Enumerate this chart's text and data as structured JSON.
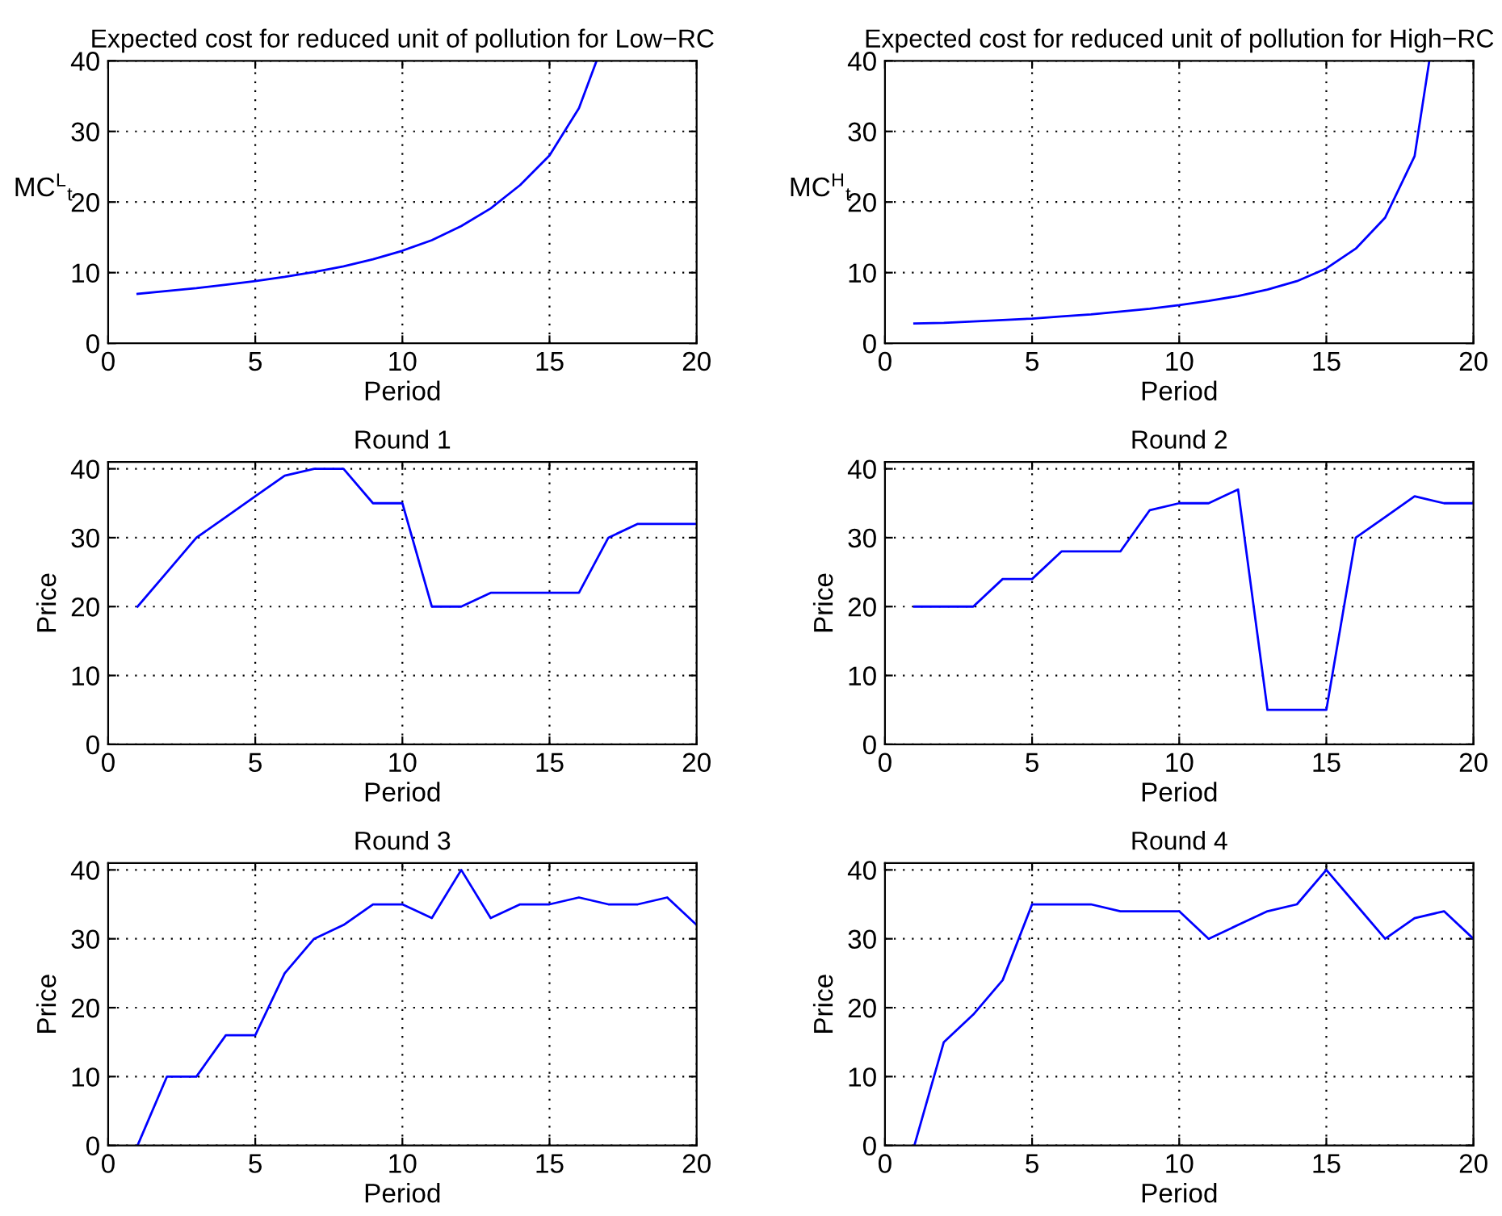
{
  "chart_data": [
    {
      "type": "line",
      "title": "Expected cost for reduced unit of pollution for Low−RC",
      "xlabel": "Period",
      "ylabel": "MC$^{L}$$_{t}$",
      "grid": true,
      "line_style": "solid",
      "xlim": [
        0,
        20
      ],
      "xticks": [
        0,
        5,
        10,
        15,
        20
      ],
      "ylim": [
        0,
        40
      ],
      "yticks": [
        0,
        10,
        20,
        30,
        40
      ],
      "series": [
        {
          "color": "#0000ff",
          "x": [
            1,
            2,
            3,
            4,
            5,
            6,
            7,
            8,
            9,
            10,
            11,
            12,
            13,
            14,
            15,
            16,
            16.6
          ],
          "values": [
            7.0,
            7.4,
            7.8,
            8.3,
            8.8,
            9.4,
            10.1,
            10.9,
            11.9,
            13.1,
            14.6,
            16.6,
            19.1,
            22.4,
            26.6,
            33.3,
            40
          ]
        }
      ]
    },
    {
      "type": "line",
      "title": "Expected cost for reduced unit of pollution for High−RC",
      "xlabel": "Period",
      "ylabel": "MC$^{H}$$_{t}$",
      "grid": true,
      "line_style": "solid",
      "xlim": [
        0,
        20
      ],
      "xticks": [
        0,
        5,
        10,
        15,
        20
      ],
      "ylim": [
        0,
        40
      ],
      "yticks": [
        0,
        10,
        20,
        30,
        40
      ],
      "series": [
        {
          "color": "#0000ff",
          "x": [
            1,
            2,
            3,
            4,
            5,
            6,
            7,
            8,
            9,
            10,
            11,
            12,
            13,
            14,
            15,
            16,
            17,
            18,
            18.5
          ],
          "values": [
            2.8,
            2.9,
            3.1,
            3.3,
            3.5,
            3.8,
            4.1,
            4.5,
            4.9,
            5.4,
            6.0,
            6.7,
            7.6,
            8.8,
            10.6,
            13.4,
            17.8,
            26.5,
            40
          ]
        }
      ]
    },
    {
      "type": "line",
      "title": "Round 1",
      "xlabel": "Period",
      "ylabel": "Price",
      "grid": true,
      "line_style": "solid",
      "xlim": [
        0,
        20
      ],
      "xticks": [
        0,
        5,
        10,
        15,
        20
      ],
      "ylim": [
        0,
        41
      ],
      "yticks": [
        0,
        10,
        20,
        30,
        40
      ],
      "series": [
        {
          "color": "#0000ff",
          "x": [
            1,
            2,
            3,
            4,
            5,
            6,
            7,
            8,
            9,
            10,
            11,
            12,
            13,
            14,
            15,
            16,
            17,
            18,
            19,
            20
          ],
          "values": [
            20,
            25,
            30,
            33,
            36,
            39,
            40,
            40,
            35,
            35,
            20,
            20,
            22,
            22,
            22,
            22,
            30,
            32,
            32,
            32
          ]
        }
      ]
    },
    {
      "type": "line",
      "title": "Round 2",
      "xlabel": "Period",
      "ylabel": "Price",
      "grid": true,
      "line_style": "solid",
      "xlim": [
        0,
        20
      ],
      "xticks": [
        0,
        5,
        10,
        15,
        20
      ],
      "ylim": [
        0,
        41
      ],
      "yticks": [
        0,
        10,
        20,
        30,
        40
      ],
      "series": [
        {
          "color": "#0000ff",
          "x": [
            1,
            2,
            3,
            4,
            5,
            6,
            7,
            8,
            9,
            10,
            11,
            12,
            13,
            14,
            15,
            16,
            17,
            18,
            19,
            20
          ],
          "values": [
            20,
            20,
            20,
            24,
            24,
            28,
            28,
            28,
            34,
            35,
            35,
            37,
            5,
            5,
            5,
            30,
            33,
            36,
            35,
            35
          ]
        }
      ]
    },
    {
      "type": "line",
      "title": "Round 3",
      "xlabel": "Period",
      "ylabel": "Price",
      "grid": true,
      "line_style": "solid",
      "xlim": [
        0,
        20
      ],
      "xticks": [
        0,
        5,
        10,
        15,
        20
      ],
      "ylim": [
        0,
        41
      ],
      "yticks": [
        0,
        10,
        20,
        30,
        40
      ],
      "series": [
        {
          "color": "#0000ff",
          "x": [
            1,
            2,
            3,
            4,
            5,
            6,
            7,
            8,
            9,
            10,
            11,
            12,
            13,
            14,
            15,
            16,
            17,
            18,
            19,
            20
          ],
          "values": [
            0,
            10,
            10,
            16,
            16,
            25,
            30,
            32,
            35,
            35,
            33,
            40,
            33,
            35,
            35,
            36,
            35,
            35,
            36,
            32
          ]
        }
      ]
    },
    {
      "type": "line",
      "title": "Round 4",
      "xlabel": "Period",
      "ylabel": "Price",
      "grid": true,
      "line_style": "solid",
      "xlim": [
        0,
        20
      ],
      "xticks": [
        0,
        5,
        10,
        15,
        20
      ],
      "ylim": [
        0,
        41
      ],
      "yticks": [
        0,
        10,
        20,
        30,
        40
      ],
      "series": [
        {
          "color": "#0000ff",
          "x": [
            1,
            2,
            3,
            4,
            5,
            6,
            7,
            8,
            9,
            10,
            11,
            12,
            13,
            14,
            15,
            16,
            17,
            18,
            19,
            20
          ],
          "values": [
            0,
            15,
            19,
            24,
            35,
            35,
            35,
            34,
            34,
            34,
            30,
            32,
            34,
            35,
            40,
            35,
            30,
            33,
            34,
            30
          ]
        }
      ]
    }
  ]
}
